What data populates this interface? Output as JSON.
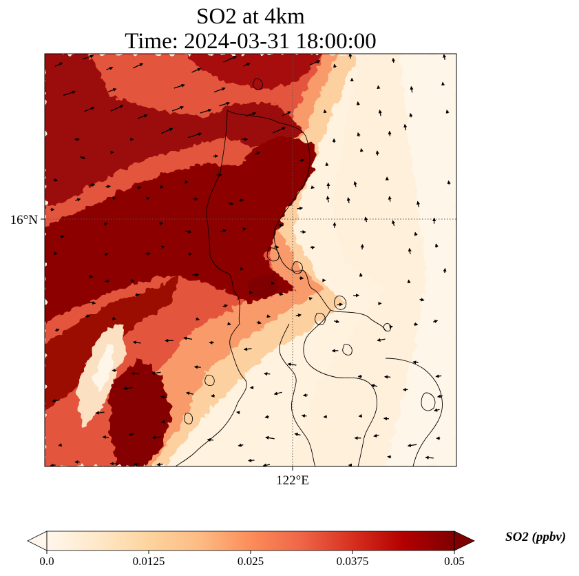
{
  "figure": {
    "title_line1": "SO2 at 4km",
    "title_line2": "Time: 2024-03-31 18:00:00"
  },
  "map": {
    "lat_label": "16°N",
    "lon_label": "122°E",
    "field": "SO2",
    "gridlines": "dotted"
  },
  "colorbar": {
    "label": "SO2 (ppbv)",
    "min": 0.0,
    "max": 0.05,
    "extend": "both",
    "colormap": "OrRd",
    "ticks": [
      "0.0",
      "0.0125",
      "0.025",
      "0.0375",
      "0.05"
    ],
    "colors": [
      "#fff7ec",
      "#fee8c8",
      "#fdd49e",
      "#fdbb84",
      "#fc8d59",
      "#ef6548",
      "#d7301f",
      "#b30000",
      "#7f0000"
    ]
  }
}
